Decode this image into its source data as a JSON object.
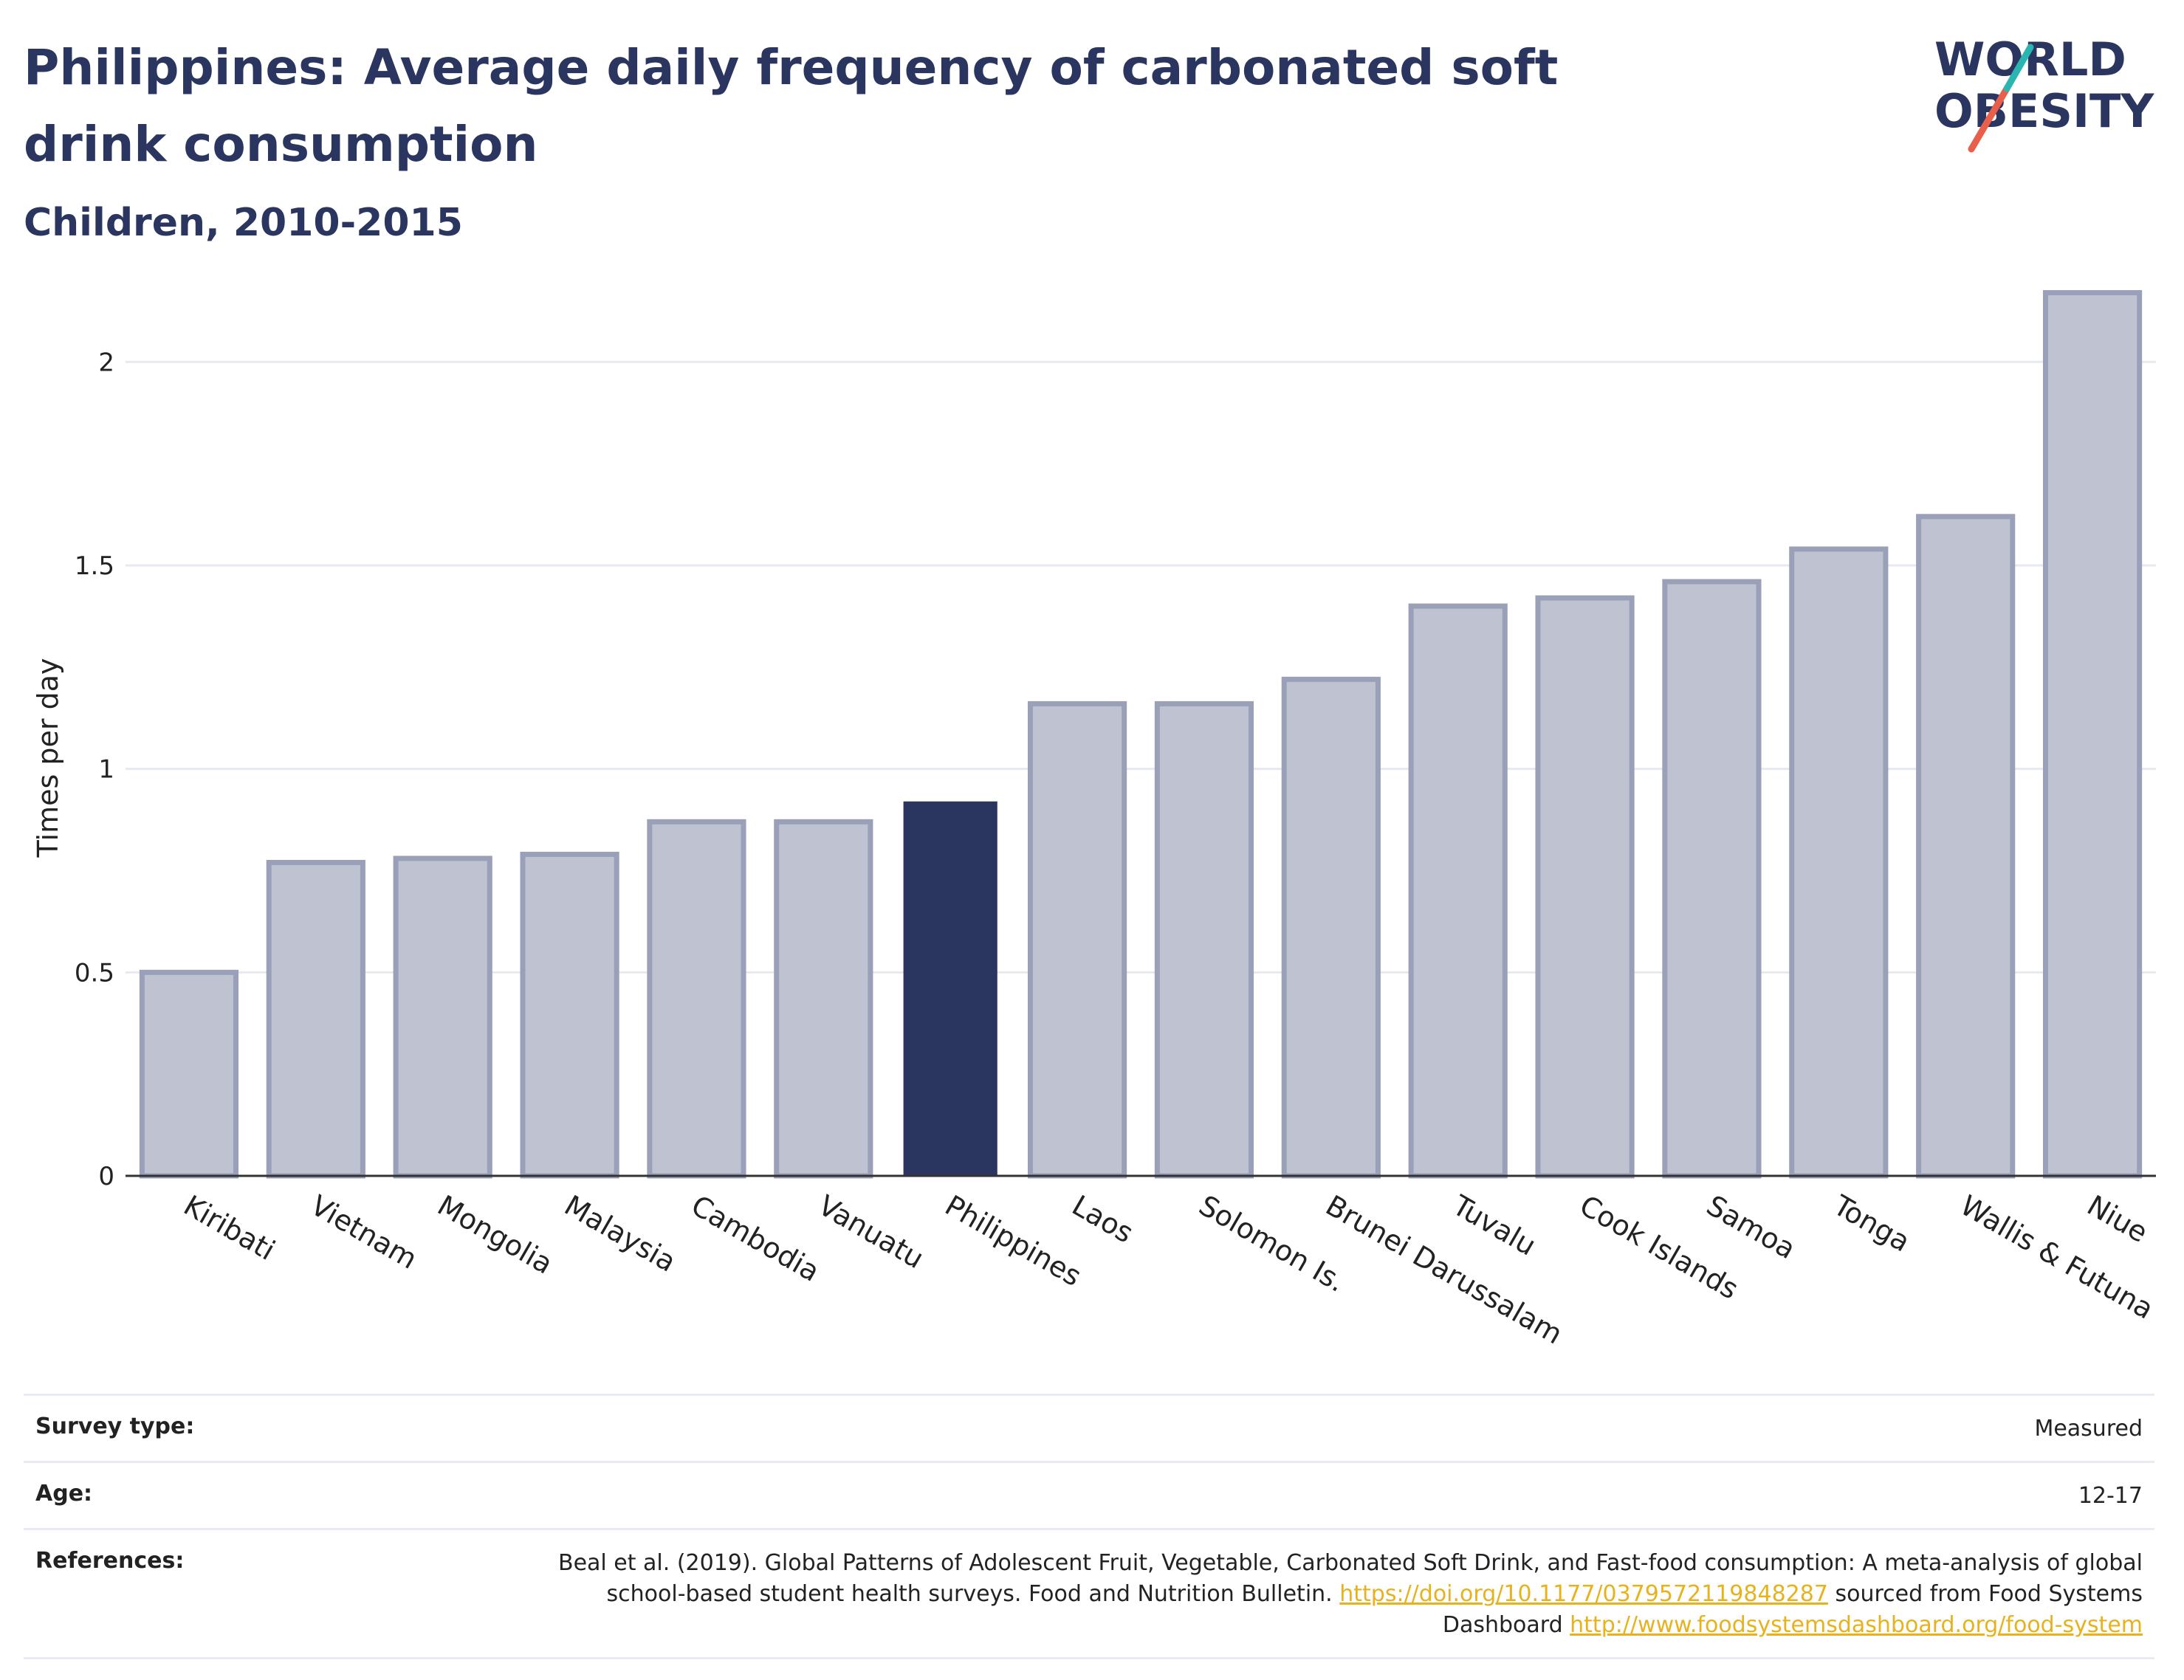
{
  "header": {
    "title": "Philippines: Average daily frequency of carbonated soft drink consumption",
    "subtitle": "Children, 2010-2015"
  },
  "logo": {
    "line1": "WORLD",
    "line2": "OBESITY",
    "colors": {
      "text": "#2a3560",
      "slash_top": "#2bb5b0",
      "slash_bottom": "#e8604c"
    }
  },
  "colors": {
    "bar": "#bfc3d1",
    "bar_border": "#9aa0b8",
    "highlight": "#2a3560",
    "grid": "#e6e9ef",
    "axis": "#333333"
  },
  "chart_data": {
    "type": "bar",
    "categories": [
      "Kiribati",
      "Vietnam",
      "Mongolia",
      "Malaysia",
      "Cambodia",
      "Vanuatu",
      "Philippines",
      "Laos",
      "Solomon Is.",
      "Brunei Darussalam",
      "Tuvalu",
      "Cook Islands",
      "Samoa",
      "Tonga",
      "Wallis & Futuna",
      "Niue"
    ],
    "values": [
      0.5,
      0.77,
      0.78,
      0.79,
      0.87,
      0.87,
      0.92,
      1.16,
      1.16,
      1.22,
      1.4,
      1.42,
      1.46,
      1.54,
      1.62,
      2.17
    ],
    "highlight": "Philippines",
    "ylabel": "Times per day",
    "xlabel": "",
    "ylim": [
      0,
      2.2
    ],
    "yticks": [
      0,
      0.5,
      1,
      1.5,
      2
    ],
    "ytick_labels": [
      "0",
      "0.5",
      "1",
      "1.5",
      "2"
    ],
    "grid": true
  },
  "info": {
    "rows": [
      {
        "label": "Survey type:",
        "value": "Measured"
      },
      {
        "label": "Age:",
        "value": "12-17"
      },
      {
        "label": "References:",
        "parts": [
          {
            "text": "Beal et al. (2019). Global Patterns of Adolescent Fruit, Vegetable, Carbonated Soft Drink, and Fast-food consumption: A meta-analysis of global school-based student health surveys. Food and Nutrition Bulletin. "
          },
          {
            "text": "https://doi.org/10.1177/0379572119848287",
            "link": true
          },
          {
            "text": " sourced from Food Systems Dashboard "
          },
          {
            "text": "http://www.foodsystemsdashboard.org/food-system",
            "link": true
          }
        ]
      }
    ]
  }
}
